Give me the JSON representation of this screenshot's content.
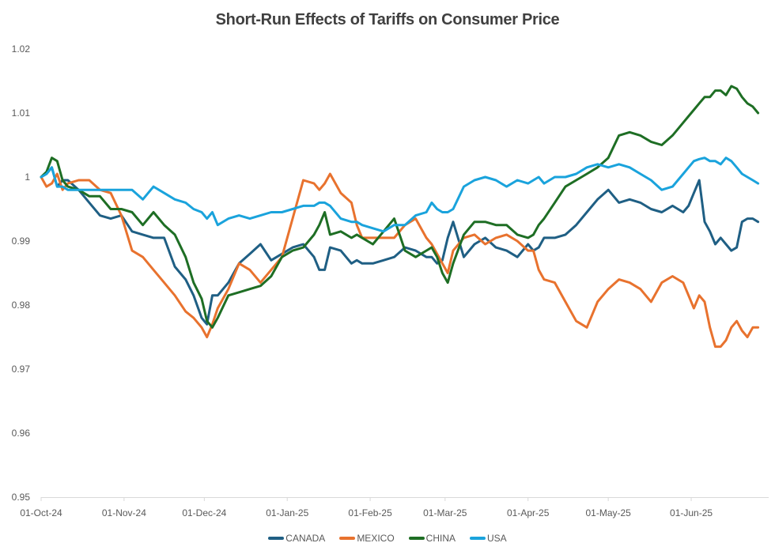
{
  "chart_data": {
    "type": "line",
    "title": "Short-Run Effects of Tariffs on Consumer Price",
    "xlabel": "",
    "ylabel": "",
    "ylim": [
      0.95,
      1.02
    ],
    "yticks": [
      "1.02",
      "1.01",
      "1",
      "0.99",
      "0.98",
      "0.97",
      "0.96",
      "0.95"
    ],
    "ytick_values": [
      1.02,
      1.01,
      1.0,
      0.99,
      0.98,
      0.97,
      0.96,
      0.95
    ],
    "xlim_days": [
      0,
      269
    ],
    "xticks": [
      {
        "label": "01-Oct-24",
        "day": 0
      },
      {
        "label": "01-Nov-24",
        "day": 31
      },
      {
        "label": "01-Dec-24",
        "day": 61
      },
      {
        "label": "01-Jan-25",
        "day": 92
      },
      {
        "label": "01-Feb-25",
        "day": 123
      },
      {
        "label": "01-Mar-25",
        "day": 151
      },
      {
        "label": "01-Apr-25",
        "day": 182
      },
      {
        "label": "01-May-25",
        "day": 212
      },
      {
        "label": "01-Jun-25",
        "day": 243
      }
    ],
    "grid": false,
    "legend_position": "bottom",
    "x_days": [
      0,
      2,
      4,
      6,
      8,
      10,
      14,
      18,
      22,
      26,
      30,
      34,
      38,
      42,
      46,
      50,
      54,
      57,
      60,
      62,
      64,
      66,
      70,
      74,
      78,
      82,
      86,
      90,
      94,
      98,
      102,
      104,
      106,
      108,
      112,
      116,
      118,
      120,
      124,
      128,
      132,
      136,
      140,
      144,
      146,
      148,
      150,
      152,
      154,
      158,
      162,
      166,
      170,
      174,
      178,
      182,
      184,
      186,
      188,
      192,
      196,
      200,
      204,
      208,
      212,
      216,
      220,
      224,
      228,
      232,
      236,
      240,
      242,
      244,
      246,
      248,
      250,
      252,
      254,
      256,
      258,
      260,
      262,
      264,
      266,
      268
    ],
    "series": [
      {
        "name": "CANADA",
        "color": "#1f5f84",
        "values": [
          1.0,
          1.0005,
          1.0015,
          0.9985,
          0.9995,
          0.9995,
          0.998,
          0.996,
          0.994,
          0.9935,
          0.994,
          0.9915,
          0.991,
          0.9905,
          0.9905,
          0.986,
          0.984,
          0.9815,
          0.978,
          0.977,
          0.9815,
          0.9815,
          0.9835,
          0.9865,
          0.988,
          0.9895,
          0.987,
          0.988,
          0.989,
          0.9895,
          0.9875,
          0.9855,
          0.9855,
          0.989,
          0.9885,
          0.9865,
          0.987,
          0.9865,
          0.9865,
          0.987,
          0.9875,
          0.989,
          0.9885,
          0.9875,
          0.9875,
          0.9865,
          0.987,
          0.9905,
          0.993,
          0.9875,
          0.9895,
          0.9905,
          0.989,
          0.9885,
          0.9875,
          0.9895,
          0.9885,
          0.989,
          0.9905,
          0.9905,
          0.991,
          0.9925,
          0.9945,
          0.9965,
          0.998,
          0.996,
          0.9965,
          0.996,
          0.995,
          0.9945,
          0.9955,
          0.9945,
          0.9955,
          0.9975,
          0.9995,
          0.993,
          0.9915,
          0.9895,
          0.9905,
          0.9895,
          0.9885,
          0.989,
          0.993,
          0.9935,
          0.9935,
          0.993
        ]
      },
      {
        "name": "MEXICO",
        "color": "#e8722e",
        "values": [
          1.0,
          0.9985,
          0.999,
          1.0005,
          0.998,
          0.999,
          0.9995,
          0.9995,
          0.998,
          0.9975,
          0.994,
          0.9885,
          0.9875,
          0.9855,
          0.9835,
          0.9815,
          0.979,
          0.978,
          0.9765,
          0.975,
          0.977,
          0.9795,
          0.9825,
          0.9865,
          0.9855,
          0.9835,
          0.9855,
          0.9875,
          0.9935,
          0.9995,
          0.999,
          0.998,
          0.999,
          1.0005,
          0.9975,
          0.996,
          0.9925,
          0.9905,
          0.9905,
          0.9905,
          0.9905,
          0.9925,
          0.9935,
          0.9905,
          0.9895,
          0.988,
          0.9865,
          0.985,
          0.9885,
          0.9905,
          0.991,
          0.9895,
          0.9905,
          0.991,
          0.99,
          0.9885,
          0.9885,
          0.9855,
          0.984,
          0.9835,
          0.9805,
          0.9775,
          0.9765,
          0.9805,
          0.9825,
          0.984,
          0.9835,
          0.9825,
          0.9805,
          0.9835,
          0.9845,
          0.9835,
          0.9815,
          0.9795,
          0.9815,
          0.9805,
          0.9765,
          0.9735,
          0.9735,
          0.9745,
          0.9765,
          0.9775,
          0.976,
          0.975,
          0.9765,
          0.9765
        ]
      },
      {
        "name": "CHINA",
        "color": "#1e6e24",
        "values": [
          1.0,
          1.0008,
          1.003,
          1.0025,
          0.9995,
          0.9985,
          0.998,
          0.997,
          0.997,
          0.995,
          0.995,
          0.9945,
          0.9925,
          0.9945,
          0.9925,
          0.991,
          0.9875,
          0.9835,
          0.981,
          0.9775,
          0.9765,
          0.978,
          0.9815,
          0.982,
          0.9825,
          0.983,
          0.9845,
          0.9875,
          0.9885,
          0.989,
          0.991,
          0.9925,
          0.9945,
          0.991,
          0.9915,
          0.9905,
          0.991,
          0.9905,
          0.9895,
          0.9915,
          0.9935,
          0.9885,
          0.9875,
          0.9885,
          0.989,
          0.9875,
          0.985,
          0.9835,
          0.9865,
          0.991,
          0.993,
          0.993,
          0.9925,
          0.9925,
          0.991,
          0.9905,
          0.991,
          0.9925,
          0.9935,
          0.996,
          0.9985,
          0.9995,
          1.0005,
          1.0015,
          1.003,
          1.0065,
          1.007,
          1.0065,
          1.0055,
          1.005,
          1.0065,
          1.0085,
          1.0095,
          1.0105,
          1.0115,
          1.0125,
          1.0125,
          1.0135,
          1.0135,
          1.0128,
          1.0142,
          1.0138,
          1.0125,
          1.0115,
          1.011,
          1.01
        ]
      },
      {
        "name": "USA",
        "color": "#1aa3dc",
        "values": [
          1.0,
          1.0005,
          1.0015,
          0.9985,
          0.9985,
          0.998,
          0.998,
          0.998,
          0.998,
          0.998,
          0.998,
          0.998,
          0.9965,
          0.9985,
          0.9975,
          0.9965,
          0.996,
          0.995,
          0.9945,
          0.9935,
          0.9945,
          0.9925,
          0.9935,
          0.994,
          0.9935,
          0.994,
          0.9945,
          0.9945,
          0.995,
          0.9955,
          0.9955,
          0.996,
          0.996,
          0.9955,
          0.9935,
          0.993,
          0.993,
          0.9925,
          0.992,
          0.9915,
          0.9925,
          0.9925,
          0.994,
          0.9945,
          0.996,
          0.995,
          0.9945,
          0.9945,
          0.995,
          0.9985,
          0.9995,
          1.0,
          0.9995,
          0.9985,
          0.9995,
          0.999,
          0.9995,
          1.0,
          0.999,
          1.0,
          1.0,
          1.0005,
          1.0015,
          1.002,
          1.0015,
          1.002,
          1.0015,
          1.0005,
          0.9995,
          0.998,
          0.9985,
          1.0005,
          1.0015,
          1.0025,
          1.0028,
          1.003,
          1.0025,
          1.0025,
          1.002,
          1.003,
          1.0025,
          1.0015,
          1.0005,
          1.0,
          0.9995,
          0.999
        ]
      }
    ]
  },
  "legend": {
    "items": [
      {
        "label": "CANADA",
        "color": "#1f5f84"
      },
      {
        "label": "MEXICO",
        "color": "#e8722e"
      },
      {
        "label": "CHINA",
        "color": "#1e6e24"
      },
      {
        "label": "USA",
        "color": "#1aa3dc"
      }
    ]
  }
}
